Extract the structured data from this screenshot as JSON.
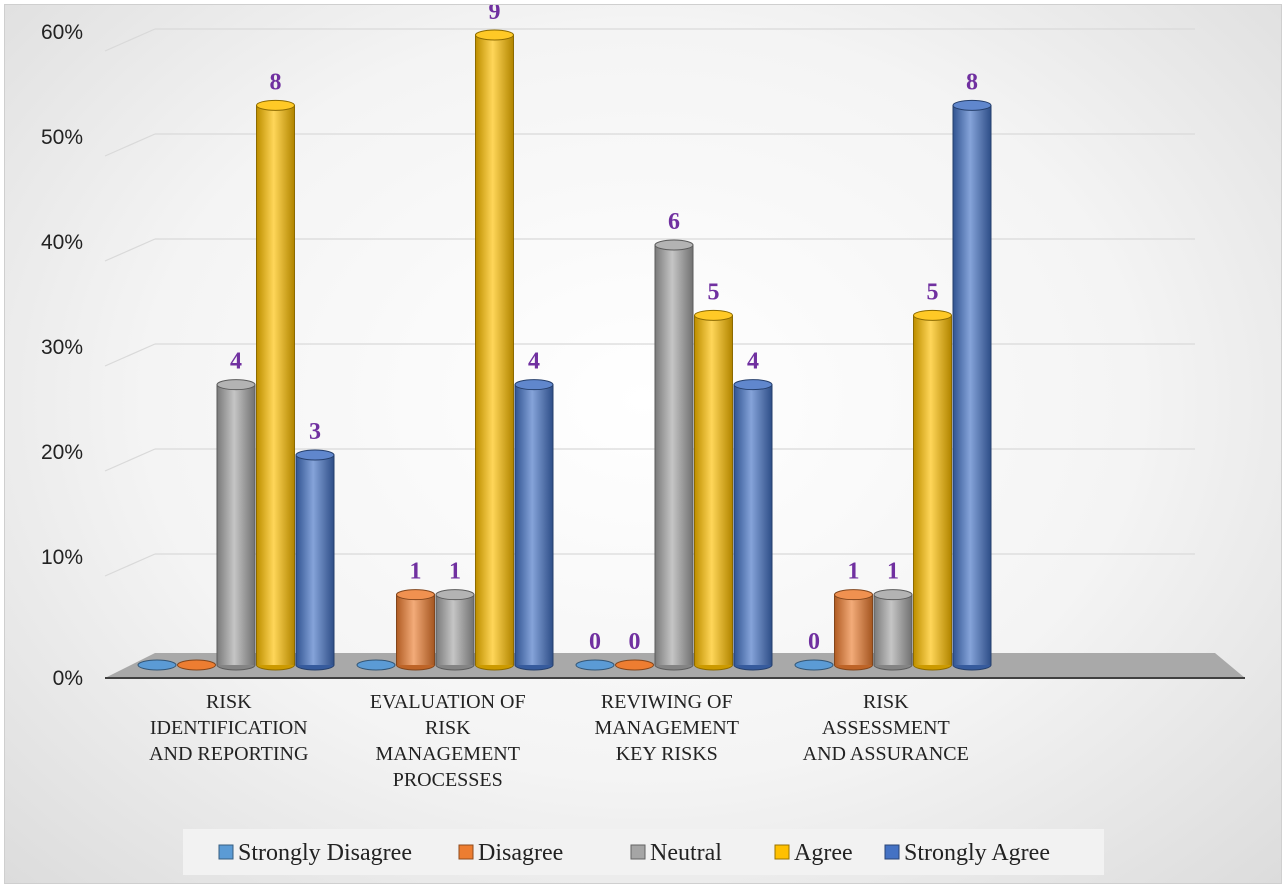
{
  "chart_data": {
    "type": "bar",
    "title": "",
    "xlabel": "",
    "ylabel": "",
    "ylim": [
      0,
      0.6
    ],
    "y_ticks": [
      0,
      0.1,
      0.2,
      0.3,
      0.4,
      0.5,
      0.6
    ],
    "y_tick_labels": [
      "0%",
      "10%",
      "20%",
      "30%",
      "40%",
      "50%",
      "60%"
    ],
    "grid": true,
    "legend_position": "bottom",
    "categories": [
      [
        "RISK",
        "IDENTIFICATION",
        "AND REPORTING"
      ],
      [
        "EVALUATION OF",
        "RISK",
        "MANAGEMENT",
        "PROCESSES"
      ],
      [
        "REVIWING OF",
        "MANAGEMENT",
        "KEY RISKS"
      ],
      [
        "RISK",
        "ASSESSMENT",
        "AND ASSURANCE"
      ]
    ],
    "series": [
      {
        "name": "Strongly Disagree",
        "color": "#5b9bd5",
        "values": [
          0,
          0,
          0,
          0
        ],
        "labels": [
          "",
          "",
          "0",
          "0"
        ]
      },
      {
        "name": "Disagree",
        "color": "#ed7d31",
        "values": [
          0,
          0.067,
          0,
          0.067
        ],
        "labels": [
          "",
          "1",
          "0",
          "1"
        ]
      },
      {
        "name": "Neutral",
        "color": "#a5a5a5",
        "values": [
          0.267,
          0.067,
          0.4,
          0.067
        ],
        "labels": [
          "4",
          "1",
          "6",
          "1"
        ]
      },
      {
        "name": "Agree",
        "color": "#ffc000",
        "values": [
          0.533,
          0.6,
          0.333,
          0.333
        ],
        "labels": [
          "8",
          "9",
          "5",
          "5"
        ]
      },
      {
        "name": "Strongly Agree",
        "color": "#4472c4",
        "values": [
          0.2,
          0.267,
          0.267,
          0.533
        ],
        "labels": [
          "3",
          "4",
          "4",
          "8"
        ]
      }
    ]
  }
}
